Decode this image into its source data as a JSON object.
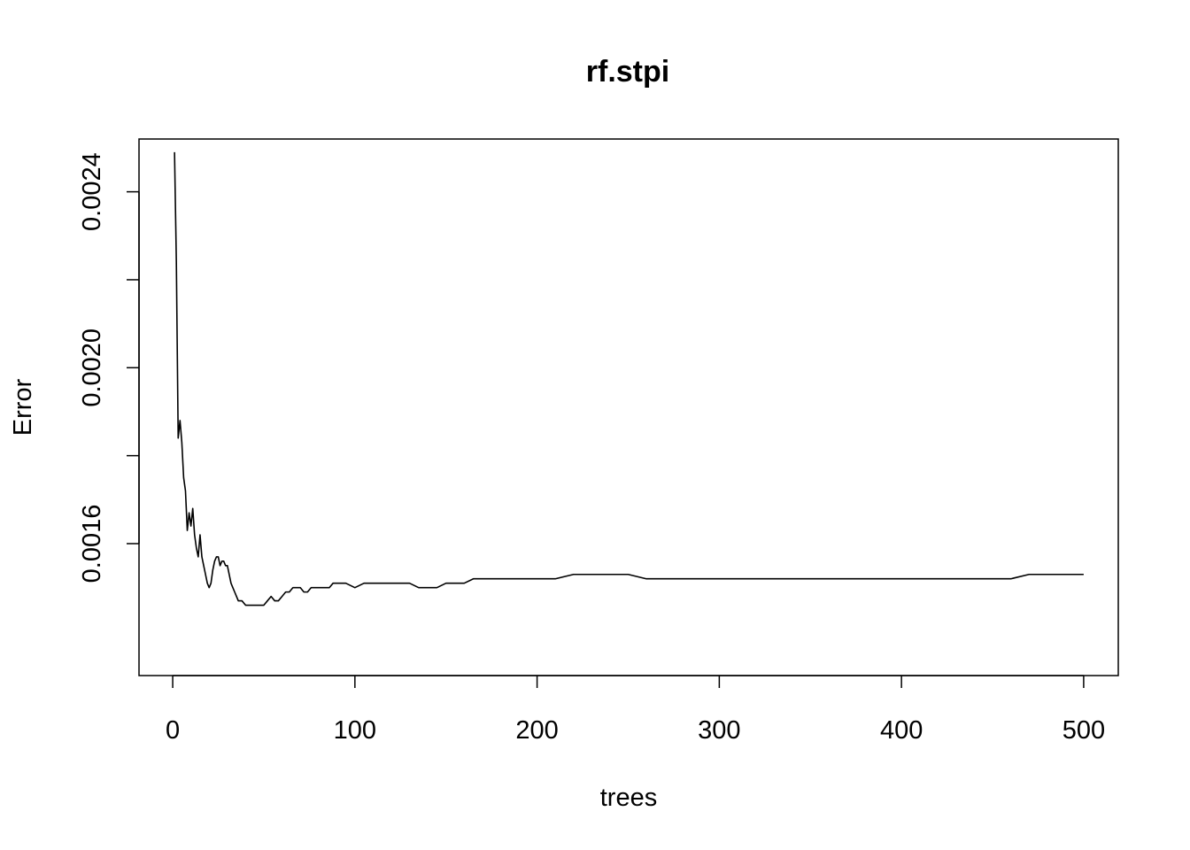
{
  "chart_data": {
    "type": "line",
    "title": "rf.stpi",
    "xlabel": "trees",
    "ylabel": "Error",
    "xlim": [
      -18.5,
      519
    ],
    "ylim": [
      0.0013,
      0.00252
    ],
    "x_ticks": [
      0,
      100,
      200,
      300,
      400,
      500
    ],
    "x_tick_labels": [
      "0",
      "100",
      "200",
      "300",
      "400",
      "500"
    ],
    "y_ticks": [
      0.0016,
      0.0018,
      0.002,
      0.0022,
      0.0024
    ],
    "y_tick_labels": [
      "0.0016",
      "",
      "0.0020",
      "",
      "0.0024"
    ],
    "grid": false,
    "series": [
      {
        "x": [
          1,
          2,
          3,
          4,
          5,
          6,
          7,
          8,
          9,
          10,
          11,
          12,
          13,
          14,
          15,
          16,
          17,
          18,
          19,
          20,
          21,
          22,
          23,
          24,
          25,
          26,
          27,
          28,
          29,
          30,
          31,
          32,
          33,
          34,
          35,
          36,
          38,
          40,
          42,
          44,
          46,
          48,
          50,
          52,
          54,
          56,
          58,
          60,
          62,
          64,
          66,
          68,
          70,
          72,
          74,
          76,
          78,
          80,
          82,
          84,
          86,
          88,
          90,
          95,
          100,
          105,
          110,
          115,
          120,
          125,
          130,
          135,
          140,
          145,
          150,
          155,
          160,
          165,
          170,
          175,
          180,
          190,
          200,
          210,
          220,
          230,
          240,
          250,
          260,
          270,
          280,
          290,
          300,
          310,
          320,
          330,
          340,
          350,
          360,
          370,
          380,
          390,
          400,
          410,
          420,
          430,
          440,
          450,
          460,
          470,
          480,
          490,
          500
        ],
        "y": [
          0.00249,
          0.00224,
          0.00184,
          0.00188,
          0.00183,
          0.00175,
          0.00172,
          0.00163,
          0.00167,
          0.00164,
          0.00168,
          0.00162,
          0.00159,
          0.00157,
          0.00162,
          0.00157,
          0.00155,
          0.00153,
          0.00151,
          0.0015,
          0.00151,
          0.00154,
          0.00156,
          0.00157,
          0.00157,
          0.00155,
          0.00156,
          0.00156,
          0.00155,
          0.00155,
          0.00153,
          0.00151,
          0.0015,
          0.00149,
          0.00148,
          0.00147,
          0.00147,
          0.00146,
          0.00146,
          0.00146,
          0.00146,
          0.00146,
          0.00146,
          0.00147,
          0.00148,
          0.00147,
          0.00147,
          0.00148,
          0.00149,
          0.00149,
          0.0015,
          0.0015,
          0.0015,
          0.00149,
          0.00149,
          0.0015,
          0.0015,
          0.0015,
          0.0015,
          0.0015,
          0.0015,
          0.00151,
          0.00151,
          0.00151,
          0.0015,
          0.00151,
          0.00151,
          0.00151,
          0.00151,
          0.00151,
          0.00151,
          0.0015,
          0.0015,
          0.0015,
          0.00151,
          0.00151,
          0.00151,
          0.00152,
          0.00152,
          0.00152,
          0.00152,
          0.00152,
          0.00152,
          0.00152,
          0.00153,
          0.00153,
          0.00153,
          0.00153,
          0.00152,
          0.00152,
          0.00152,
          0.00152,
          0.00152,
          0.00152,
          0.00152,
          0.00152,
          0.00152,
          0.00152,
          0.00152,
          0.00152,
          0.00152,
          0.00152,
          0.00152,
          0.00152,
          0.00152,
          0.00152,
          0.00152,
          0.00152,
          0.00152,
          0.00153,
          0.00153,
          0.00153,
          0.00153
        ]
      }
    ],
    "colors": {
      "line": "#000000",
      "frame": "#000000",
      "background": "#ffffff"
    }
  }
}
